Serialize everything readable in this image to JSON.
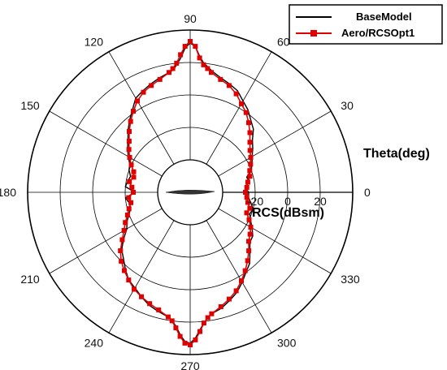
{
  "chart_data": {
    "type": "polar-line",
    "angle_axis": {
      "title": "Theta(deg)",
      "ticks": [
        "0",
        "30",
        "60",
        "90",
        "120",
        "150",
        "180",
        "210",
        "240",
        "270",
        "300",
        "330"
      ],
      "values": [
        0,
        30,
        60,
        90,
        120,
        150,
        180,
        210,
        240,
        270,
        300,
        330
      ]
    },
    "radial_axis": {
      "title": "RCS(dBsm)",
      "ticks": [
        "-20",
        "0",
        "20"
      ],
      "tick_values": [
        -20,
        0,
        20
      ],
      "range": [
        -60,
        40
      ],
      "rings": [
        -40,
        -20,
        0,
        20,
        40
      ]
    },
    "legend": {
      "position": "top-right"
    },
    "colors": {
      "base": "#000000",
      "opt": "#e00000"
    },
    "series": [
      {
        "name": "BaseModel",
        "color": "#000000",
        "marker": "none",
        "theta": [
          0,
          5,
          10,
          15,
          20,
          25,
          30,
          35,
          40,
          45,
          50,
          55,
          60,
          65,
          70,
          75,
          80,
          82,
          84,
          86,
          88,
          90,
          92,
          94,
          96,
          98,
          100,
          105,
          110,
          115,
          120,
          125,
          130,
          135,
          140,
          145,
          150,
          155,
          160,
          165,
          170,
          175,
          180,
          185,
          190,
          195,
          200,
          205,
          210,
          215,
          220,
          225,
          230,
          235,
          240,
          245,
          250,
          255,
          260,
          262,
          264,
          266,
          268,
          270,
          272,
          274,
          276,
          278,
          280,
          285,
          290,
          295,
          300,
          305,
          310,
          315,
          320,
          325,
          330,
          335,
          340,
          345,
          350,
          355
        ],
        "r": [
          -24,
          -26,
          -23,
          -24,
          -20,
          -18,
          -16,
          -13,
          -10,
          -5,
          -2,
          2,
          5,
          9,
          11,
          13,
          16,
          18,
          20,
          24,
          30,
          32,
          29,
          23,
          19,
          16,
          15,
          13,
          11,
          9,
          7,
          2,
          -2,
          -6,
          -10,
          -13,
          -16,
          -19,
          -20,
          -22,
          -21,
          -20,
          -26,
          -20,
          -22,
          -22,
          -20,
          -17,
          -15,
          -10,
          -5,
          -2,
          2,
          6,
          8,
          11,
          14,
          16,
          18,
          20,
          23,
          28,
          32,
          33,
          30,
          25,
          21,
          18,
          16,
          14,
          11,
          8,
          4,
          0,
          -3,
          -8,
          -12,
          -13,
          -16,
          -19,
          -21,
          -20,
          -22,
          -24
        ]
      },
      {
        "name": "Aero/RCSOpt1",
        "color": "#e00000",
        "marker": "square",
        "theta": [
          0,
          5,
          10,
          15,
          20,
          25,
          30,
          35,
          40,
          45,
          50,
          55,
          60,
          65,
          70,
          75,
          80,
          82,
          84,
          86,
          88,
          90,
          92,
          94,
          96,
          98,
          100,
          105,
          110,
          115,
          120,
          125,
          130,
          135,
          140,
          145,
          150,
          155,
          160,
          165,
          170,
          175,
          180,
          185,
          190,
          195,
          200,
          205,
          210,
          215,
          220,
          225,
          230,
          235,
          240,
          245,
          250,
          255,
          260,
          262,
          264,
          266,
          268,
          270,
          272,
          274,
          276,
          278,
          280,
          285,
          290,
          295,
          300,
          305,
          310,
          315,
          320,
          325,
          330,
          335,
          340,
          345,
          350,
          355
        ],
        "r": [
          -26,
          -25,
          -24,
          -22,
          -21,
          -19,
          -17,
          -15,
          -12,
          -8,
          -4,
          0,
          3,
          7,
          10,
          12,
          15,
          17,
          19,
          23,
          30,
          33,
          30,
          25,
          20,
          17,
          15,
          12,
          10,
          8,
          5,
          1,
          -3,
          -7,
          -11,
          -14,
          -17,
          -20,
          -23,
          -24,
          -22,
          -24,
          -25,
          -22,
          -23,
          -21,
          -19,
          -16,
          -13,
          -9,
          -4,
          0,
          3,
          6,
          9,
          11,
          13,
          15,
          18,
          20,
          24,
          29,
          33,
          34,
          31,
          26,
          21,
          18,
          16,
          13,
          10,
          7,
          3,
          -1,
          -5,
          -9,
          -13,
          -15,
          -17,
          -20,
          -23,
          -22,
          -24,
          -25
        ]
      }
    ]
  }
}
